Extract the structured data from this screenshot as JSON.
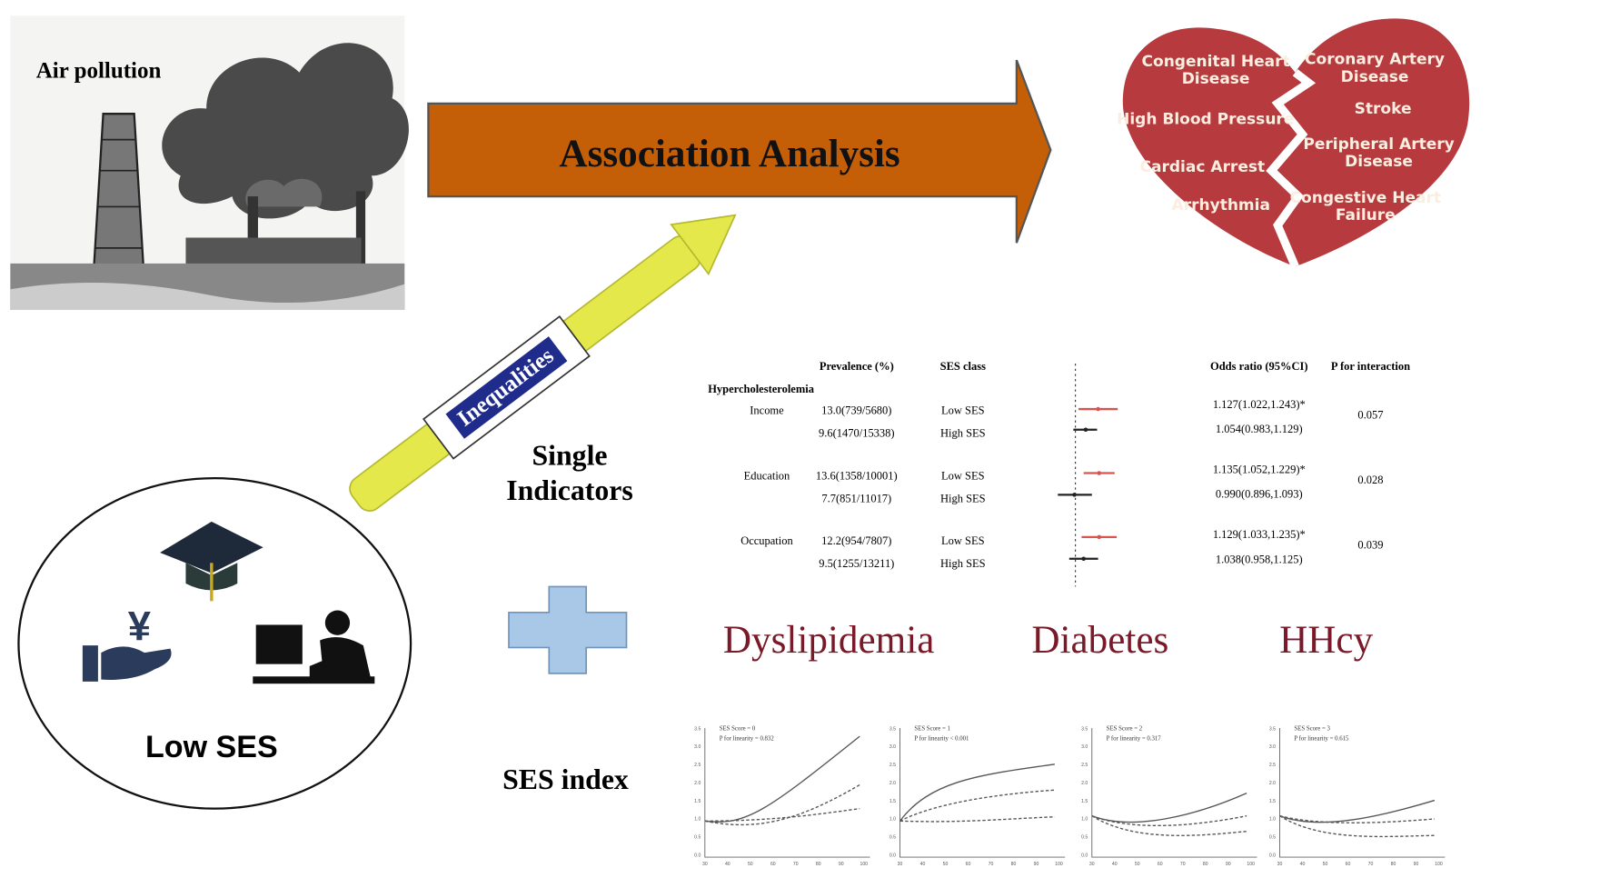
{
  "left_panel": {
    "air_pollution_label": "Air pollution",
    "ses_label": "Low SES"
  },
  "arrows": {
    "association": "Association Analysis",
    "inequalities": "Inequalities"
  },
  "heart": {
    "left_diseases": [
      [
        "Congenital Heart",
        "Disease"
      ],
      [
        "High Blood Pressure"
      ],
      [
        "Cardiac Arrest"
      ],
      [
        "Arrhythmia"
      ]
    ],
    "right_diseases": [
      [
        "Coronary Artery",
        "Disease"
      ],
      [
        "Stroke"
      ],
      [
        "Peripheral Artery",
        "Disease"
      ],
      [
        "Congestive Heart",
        "Failure"
      ]
    ]
  },
  "labels": {
    "single_indicators": [
      "Single",
      "Indicators"
    ],
    "ses_index": "SES index"
  },
  "forest_table": {
    "headers": {
      "prevalence": "Prevalence (%)",
      "ses_class": "SES class",
      "odds_ratio": "Odds ratio (95%CI)",
      "p_interaction": "P for interaction"
    },
    "outcome": "Hypercholesterolemia",
    "groups": [
      {
        "indicator": "Income",
        "p_interaction": "0.057",
        "rows": [
          {
            "prevalence": "13.0(739/5680)",
            "ses_class": "Low SES",
            "odds_ratio": "1.127(1.022,1.243)*"
          },
          {
            "prevalence": "9.6(1470/15338)",
            "ses_class": "High SES",
            "odds_ratio": "1.054(0.983,1.129)"
          }
        ]
      },
      {
        "indicator": "Education",
        "p_interaction": "0.028",
        "rows": [
          {
            "prevalence": "13.6(1358/10001)",
            "ses_class": "Low SES",
            "odds_ratio": "1.135(1.052,1.229)*"
          },
          {
            "prevalence": "7.7(851/11017)",
            "ses_class": "High SES",
            "odds_ratio": "0.990(0.896,1.093)"
          }
        ]
      },
      {
        "indicator": "Occupation",
        "p_interaction": "0.039",
        "rows": [
          {
            "prevalence": "12.2(954/7807)",
            "ses_class": "Low SES",
            "odds_ratio": "1.129(1.033,1.235)*"
          },
          {
            "prevalence": "9.5(1255/13211)",
            "ses_class": "High SES",
            "odds_ratio": "1.038(0.958,1.125)"
          }
        ]
      }
    ]
  },
  "outcomes": [
    "Dyslipidemia",
    "Diabetes",
    "HHcy"
  ],
  "spline_axes": {
    "y_ticks": [
      "3.5",
      "3.0",
      "2.5",
      "2.0",
      "1.5",
      "1.0",
      "0.5",
      "0.0"
    ],
    "x_ticks": [
      "30",
      "40",
      "50",
      "60",
      "70",
      "80",
      "90",
      "100"
    ]
  },
  "spline_plots": [
    {
      "title": "SES Score = 0",
      "p_linearity": "P for linearity = 0.832"
    },
    {
      "title": "SES Score = 1",
      "p_linearity": "P for linearity < 0.001"
    },
    {
      "title": "SES Score = 2",
      "p_linearity": "P for linearity = 0.317"
    },
    {
      "title": "SES Score = 3",
      "p_linearity": "P for linearity = 0.615"
    }
  ]
}
